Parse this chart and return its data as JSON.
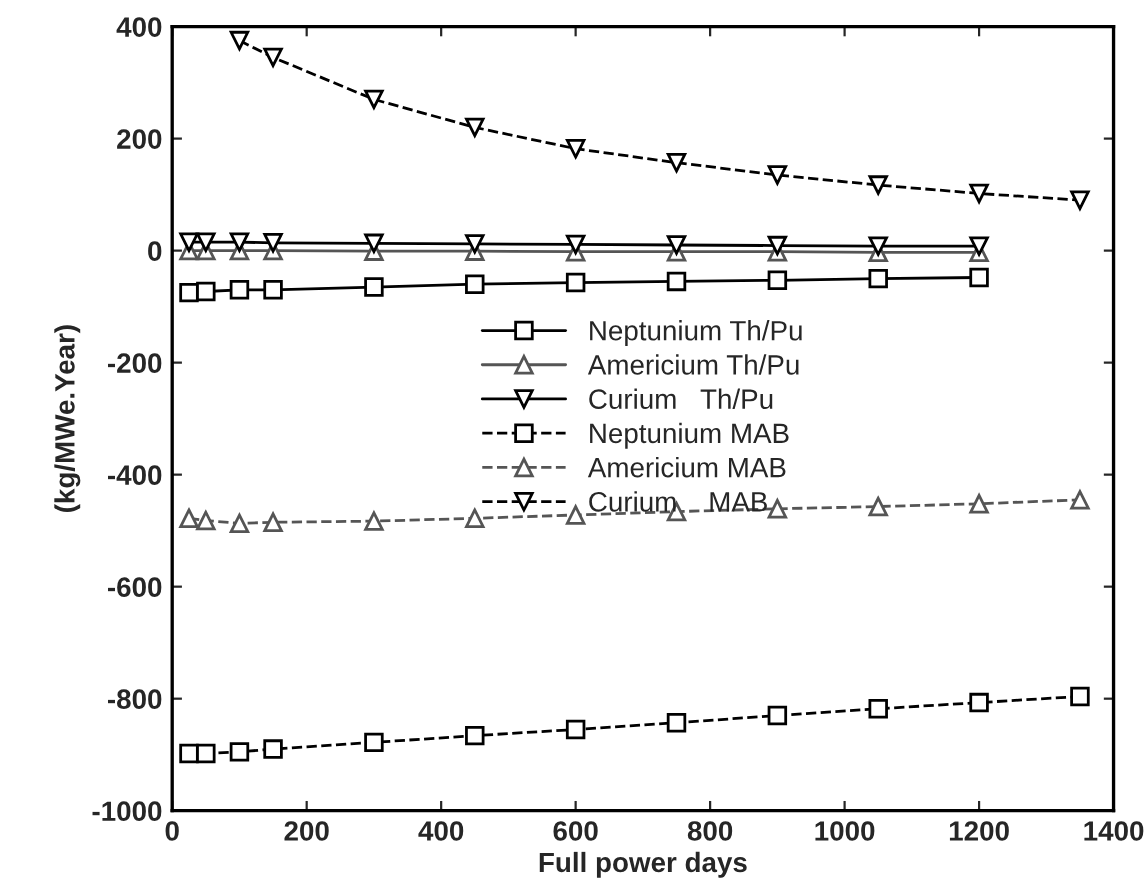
{
  "chart_data": {
    "type": "line",
    "xlabel": "Full power days",
    "ylabel": "(kg/MWe.Year)",
    "x": [
      25,
      50,
      100,
      150,
      300,
      450,
      600,
      750,
      900,
      1050,
      1200,
      1350
    ],
    "xlim": [
      0,
      1400
    ],
    "xticks": [
      0,
      200,
      400,
      600,
      800,
      1000,
      1200,
      1400
    ],
    "ylim": [
      -1000,
      400
    ],
    "yticks": [
      -1000,
      -800,
      -600,
      -400,
      -200,
      0,
      200,
      400
    ],
    "grid": false,
    "legend": "center",
    "series": [
      {
        "name": "Neptunium Th/Pu",
        "color": "#000000",
        "marker": "square",
        "line_style": "solid",
        "values": [
          -75,
          -73,
          -70,
          -70,
          -65,
          -60,
          -57,
          -55,
          -53,
          -50,
          -48,
          null
        ]
      },
      {
        "name": "Americium Th/Pu",
        "color": "#555555",
        "marker": "triangle",
        "line_style": "solid",
        "values": [
          0,
          0,
          0,
          0,
          -1,
          -1,
          -2,
          -2,
          -2,
          -3,
          -3,
          null
        ]
      },
      {
        "name": "Curium   Th/Pu",
        "color": "#000000",
        "marker": "triangle_down",
        "line_style": "solid",
        "values": [
          15,
          15,
          15,
          14,
          13,
          12,
          11,
          10,
          9,
          8,
          8,
          null
        ]
      },
      {
        "name": "Neptunium MAB",
        "color": "#000000",
        "marker": "square",
        "line_style": "dashed",
        "values": [
          -898,
          -898,
          -895,
          -890,
          -878,
          -866,
          -855,
          -843,
          -830,
          -818,
          -807,
          -796
        ]
      },
      {
        "name": "Americium MAB",
        "color": "#555555",
        "marker": "triangle",
        "line_style": "dashed",
        "values": [
          -478,
          -482,
          -487,
          -485,
          -483,
          -478,
          -472,
          -466,
          -461,
          -457,
          -452,
          -445
        ]
      },
      {
        "name": "Curium    MAB",
        "color": "#000000",
        "marker": "triangle_down",
        "line_style": "dashed",
        "values": [
          null,
          null,
          375,
          345,
          270,
          220,
          182,
          157,
          135,
          117,
          102,
          90
        ]
      }
    ]
  }
}
